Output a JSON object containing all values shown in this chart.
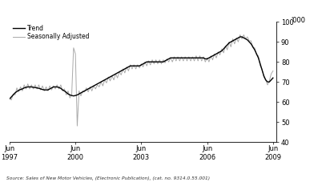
{
  "title": "",
  "ylabel_right": "'000",
  "ylim": [
    40,
    100
  ],
  "yticks": [
    40,
    50,
    60,
    70,
    80,
    90,
    100
  ],
  "xlim_start": 1997.417,
  "xlim_end": 2009.583,
  "xtick_labels": [
    "Jun\n1997",
    "Jun\n2000",
    "Jun\n2003",
    "Jun\n2006",
    "Jun\n2009"
  ],
  "xtick_positions": [
    1997.417,
    2000.417,
    2003.417,
    2006.417,
    2009.417
  ],
  "source_text": "Source: Sales of New Motor Vehicles, (Electronic Publication), (cat. no. 9314.0.55.001)",
  "legend_entries": [
    "Trend",
    "Seasonally Adjusted"
  ],
  "trend_color": "#000000",
  "seasonal_color": "#aaaaaa",
  "background_color": "#ffffff",
  "trend_linewidth": 1.0,
  "seasonal_linewidth": 0.7,
  "trend_data": [
    [
      1997.417,
      61.5
    ],
    [
      1997.5,
      62.5
    ],
    [
      1997.583,
      63.5
    ],
    [
      1997.667,
      64.5
    ],
    [
      1997.75,
      65.2
    ],
    [
      1997.833,
      65.8
    ],
    [
      1997.917,
      66.2
    ],
    [
      1998.0,
      66.5
    ],
    [
      1998.083,
      67.0
    ],
    [
      1998.167,
      67.3
    ],
    [
      1998.25,
      67.5
    ],
    [
      1998.333,
      67.5
    ],
    [
      1998.417,
      67.5
    ],
    [
      1998.5,
      67.3
    ],
    [
      1998.583,
      67.2
    ],
    [
      1998.667,
      67.0
    ],
    [
      1998.75,
      66.8
    ],
    [
      1998.833,
      66.5
    ],
    [
      1998.917,
      66.2
    ],
    [
      1999.0,
      66.0
    ],
    [
      1999.083,
      66.0
    ],
    [
      1999.167,
      66.0
    ],
    [
      1999.25,
      66.5
    ],
    [
      1999.333,
      67.0
    ],
    [
      1999.417,
      67.5
    ],
    [
      1999.5,
      67.5
    ],
    [
      1999.583,
      67.5
    ],
    [
      1999.667,
      67.2
    ],
    [
      1999.75,
      66.8
    ],
    [
      1999.833,
      66.0
    ],
    [
      1999.917,
      65.5
    ],
    [
      2000.0,
      64.8
    ],
    [
      2000.083,
      64.0
    ],
    [
      2000.167,
      63.5
    ],
    [
      2000.25,
      63.2
    ],
    [
      2000.333,
      63.0
    ],
    [
      2000.417,
      63.2
    ],
    [
      2000.5,
      63.5
    ],
    [
      2000.583,
      64.0
    ],
    [
      2000.667,
      64.5
    ],
    [
      2000.75,
      65.0
    ],
    [
      2000.833,
      65.5
    ],
    [
      2000.917,
      66.0
    ],
    [
      2001.0,
      66.5
    ],
    [
      2001.083,
      67.0
    ],
    [
      2001.167,
      67.5
    ],
    [
      2001.25,
      68.0
    ],
    [
      2001.333,
      68.5
    ],
    [
      2001.417,
      69.0
    ],
    [
      2001.5,
      69.5
    ],
    [
      2001.583,
      70.0
    ],
    [
      2001.667,
      70.5
    ],
    [
      2001.75,
      71.0
    ],
    [
      2001.833,
      71.5
    ],
    [
      2001.917,
      72.0
    ],
    [
      2002.0,
      72.5
    ],
    [
      2002.083,
      73.0
    ],
    [
      2002.167,
      73.5
    ],
    [
      2002.25,
      74.0
    ],
    [
      2002.333,
      74.5
    ],
    [
      2002.417,
      75.0
    ],
    [
      2002.5,
      75.5
    ],
    [
      2002.583,
      76.0
    ],
    [
      2002.667,
      76.5
    ],
    [
      2002.75,
      77.0
    ],
    [
      2002.833,
      77.5
    ],
    [
      2002.917,
      78.0
    ],
    [
      2003.0,
      78.0
    ],
    [
      2003.083,
      78.0
    ],
    [
      2003.167,
      78.0
    ],
    [
      2003.25,
      78.0
    ],
    [
      2003.333,
      78.0
    ],
    [
      2003.417,
      78.5
    ],
    [
      2003.5,
      79.0
    ],
    [
      2003.583,
      79.5
    ],
    [
      2003.667,
      80.0
    ],
    [
      2003.75,
      80.0
    ],
    [
      2003.833,
      80.0
    ],
    [
      2003.917,
      80.0
    ],
    [
      2004.0,
      80.0
    ],
    [
      2004.083,
      80.0
    ],
    [
      2004.167,
      80.0
    ],
    [
      2004.25,
      80.0
    ],
    [
      2004.333,
      80.0
    ],
    [
      2004.417,
      80.0
    ],
    [
      2004.5,
      80.5
    ],
    [
      2004.583,
      81.0
    ],
    [
      2004.667,
      81.5
    ],
    [
      2004.75,
      82.0
    ],
    [
      2004.833,
      82.0
    ],
    [
      2004.917,
      82.0
    ],
    [
      2005.0,
      82.0
    ],
    [
      2005.083,
      82.0
    ],
    [
      2005.167,
      82.0
    ],
    [
      2005.25,
      82.0
    ],
    [
      2005.333,
      82.0
    ],
    [
      2005.417,
      82.0
    ],
    [
      2005.5,
      82.0
    ],
    [
      2005.583,
      82.0
    ],
    [
      2005.667,
      82.0
    ],
    [
      2005.75,
      82.0
    ],
    [
      2005.833,
      82.0
    ],
    [
      2005.917,
      82.0
    ],
    [
      2006.0,
      82.0
    ],
    [
      2006.083,
      82.0
    ],
    [
      2006.167,
      82.0
    ],
    [
      2006.25,
      82.0
    ],
    [
      2006.333,
      81.5
    ],
    [
      2006.417,
      81.5
    ],
    [
      2006.5,
      82.0
    ],
    [
      2006.583,
      82.5
    ],
    [
      2006.667,
      83.0
    ],
    [
      2006.75,
      83.5
    ],
    [
      2006.833,
      84.0
    ],
    [
      2006.917,
      84.5
    ],
    [
      2007.0,
      85.0
    ],
    [
      2007.083,
      85.5
    ],
    [
      2007.167,
      86.5
    ],
    [
      2007.25,
      87.5
    ],
    [
      2007.333,
      88.5
    ],
    [
      2007.417,
      89.5
    ],
    [
      2007.5,
      90.0
    ],
    [
      2007.583,
      90.5
    ],
    [
      2007.667,
      91.0
    ],
    [
      2007.75,
      91.5
    ],
    [
      2007.833,
      92.0
    ],
    [
      2007.917,
      92.5
    ],
    [
      2008.0,
      92.5
    ],
    [
      2008.083,
      92.0
    ],
    [
      2008.167,
      91.5
    ],
    [
      2008.25,
      91.0
    ],
    [
      2008.333,
      90.0
    ],
    [
      2008.417,
      89.0
    ],
    [
      2008.5,
      87.5
    ],
    [
      2008.583,
      86.0
    ],
    [
      2008.667,
      84.0
    ],
    [
      2008.75,
      82.0
    ],
    [
      2008.833,
      79.0
    ],
    [
      2008.917,
      76.0
    ],
    [
      2009.0,
      73.0
    ],
    [
      2009.083,
      71.0
    ],
    [
      2009.167,
      70.0
    ],
    [
      2009.25,
      70.0
    ],
    [
      2009.333,
      71.0
    ],
    [
      2009.417,
      72.0
    ]
  ],
  "seasonal_data": [
    [
      1997.417,
      62.0
    ],
    [
      1997.5,
      61.0
    ],
    [
      1997.583,
      64.0
    ],
    [
      1997.667,
      63.5
    ],
    [
      1997.75,
      67.0
    ],
    [
      1997.833,
      65.0
    ],
    [
      1997.917,
      67.5
    ],
    [
      1998.0,
      65.5
    ],
    [
      1998.083,
      68.5
    ],
    [
      1998.167,
      66.5
    ],
    [
      1998.25,
      69.0
    ],
    [
      1998.333,
      66.5
    ],
    [
      1998.417,
      68.5
    ],
    [
      1998.5,
      66.5
    ],
    [
      1998.583,
      68.5
    ],
    [
      1998.667,
      66.5
    ],
    [
      1998.75,
      68.5
    ],
    [
      1998.833,
      66.0
    ],
    [
      1998.917,
      68.0
    ],
    [
      1999.0,
      65.5
    ],
    [
      1999.083,
      67.5
    ],
    [
      1999.167,
      65.5
    ],
    [
      1999.25,
      68.0
    ],
    [
      1999.333,
      66.0
    ],
    [
      1999.417,
      68.0
    ],
    [
      1999.5,
      66.5
    ],
    [
      1999.583,
      68.5
    ],
    [
      1999.667,
      66.5
    ],
    [
      1999.75,
      68.5
    ],
    [
      1999.833,
      65.5
    ],
    [
      1999.917,
      66.5
    ],
    [
      2000.0,
      63.5
    ],
    [
      2000.083,
      65.5
    ],
    [
      2000.167,
      62.0
    ],
    [
      2000.25,
      64.0
    ],
    [
      2000.333,
      87.0
    ],
    [
      2000.417,
      84.0
    ],
    [
      2000.5,
      48.0
    ],
    [
      2000.583,
      65.5
    ],
    [
      2000.667,
      63.0
    ],
    [
      2000.75,
      65.5
    ],
    [
      2000.833,
      65.0
    ],
    [
      2000.917,
      67.0
    ],
    [
      2001.0,
      65.0
    ],
    [
      2001.083,
      67.5
    ],
    [
      2001.167,
      65.5
    ],
    [
      2001.25,
      68.0
    ],
    [
      2001.333,
      66.5
    ],
    [
      2001.417,
      68.5
    ],
    [
      2001.5,
      67.5
    ],
    [
      2001.583,
      70.0
    ],
    [
      2001.667,
      68.0
    ],
    [
      2001.75,
      71.0
    ],
    [
      2001.833,
      69.5
    ],
    [
      2001.917,
      72.5
    ],
    [
      2002.0,
      70.5
    ],
    [
      2002.083,
      73.0
    ],
    [
      2002.167,
      71.0
    ],
    [
      2002.25,
      74.0
    ],
    [
      2002.333,
      72.0
    ],
    [
      2002.417,
      75.0
    ],
    [
      2002.5,
      73.5
    ],
    [
      2002.583,
      76.5
    ],
    [
      2002.667,
      74.5
    ],
    [
      2002.75,
      77.5
    ],
    [
      2002.833,
      75.5
    ],
    [
      2002.917,
      78.5
    ],
    [
      2003.0,
      76.5
    ],
    [
      2003.083,
      78.5
    ],
    [
      2003.167,
      76.5
    ],
    [
      2003.25,
      78.5
    ],
    [
      2003.333,
      77.0
    ],
    [
      2003.417,
      79.0
    ],
    [
      2003.5,
      77.5
    ],
    [
      2003.583,
      80.0
    ],
    [
      2003.667,
      78.0
    ],
    [
      2003.75,
      80.5
    ],
    [
      2003.833,
      78.5
    ],
    [
      2003.917,
      81.0
    ],
    [
      2004.0,
      79.0
    ],
    [
      2004.083,
      81.0
    ],
    [
      2004.167,
      79.0
    ],
    [
      2004.25,
      81.0
    ],
    [
      2004.333,
      79.0
    ],
    [
      2004.417,
      81.0
    ],
    [
      2004.5,
      79.5
    ],
    [
      2004.583,
      81.5
    ],
    [
      2004.667,
      80.0
    ],
    [
      2004.75,
      82.0
    ],
    [
      2004.833,
      80.0
    ],
    [
      2004.917,
      82.5
    ],
    [
      2005.0,
      80.5
    ],
    [
      2005.083,
      82.5
    ],
    [
      2005.167,
      80.5
    ],
    [
      2005.25,
      82.5
    ],
    [
      2005.333,
      80.5
    ],
    [
      2005.417,
      82.5
    ],
    [
      2005.5,
      80.5
    ],
    [
      2005.583,
      82.5
    ],
    [
      2005.667,
      80.5
    ],
    [
      2005.75,
      82.5
    ],
    [
      2005.833,
      80.5
    ],
    [
      2005.917,
      83.0
    ],
    [
      2006.0,
      80.5
    ],
    [
      2006.083,
      83.0
    ],
    [
      2006.167,
      80.5
    ],
    [
      2006.25,
      82.5
    ],
    [
      2006.333,
      80.0
    ],
    [
      2006.417,
      82.0
    ],
    [
      2006.5,
      80.0
    ],
    [
      2006.583,
      83.0
    ],
    [
      2006.667,
      81.0
    ],
    [
      2006.75,
      84.0
    ],
    [
      2006.833,
      82.0
    ],
    [
      2006.917,
      85.0
    ],
    [
      2007.0,
      83.5
    ],
    [
      2007.083,
      86.5
    ],
    [
      2007.167,
      84.5
    ],
    [
      2007.25,
      88.0
    ],
    [
      2007.333,
      86.0
    ],
    [
      2007.417,
      90.0
    ],
    [
      2007.5,
      87.5
    ],
    [
      2007.583,
      91.5
    ],
    [
      2007.667,
      89.0
    ],
    [
      2007.75,
      92.0
    ],
    [
      2007.833,
      90.0
    ],
    [
      2007.917,
      93.5
    ],
    [
      2008.0,
      91.5
    ],
    [
      2008.083,
      93.5
    ],
    [
      2008.167,
      91.5
    ],
    [
      2008.25,
      92.5
    ],
    [
      2008.333,
      90.5
    ],
    [
      2008.417,
      90.5
    ],
    [
      2008.5,
      87.0
    ],
    [
      2008.583,
      87.0
    ],
    [
      2008.667,
      83.5
    ],
    [
      2008.75,
      83.0
    ],
    [
      2008.833,
      78.0
    ],
    [
      2008.917,
      76.5
    ],
    [
      2009.0,
      72.5
    ],
    [
      2009.083,
      71.0
    ],
    [
      2009.167,
      68.5
    ],
    [
      2009.25,
      70.5
    ],
    [
      2009.333,
      74.0
    ],
    [
      2009.417,
      75.5
    ]
  ]
}
